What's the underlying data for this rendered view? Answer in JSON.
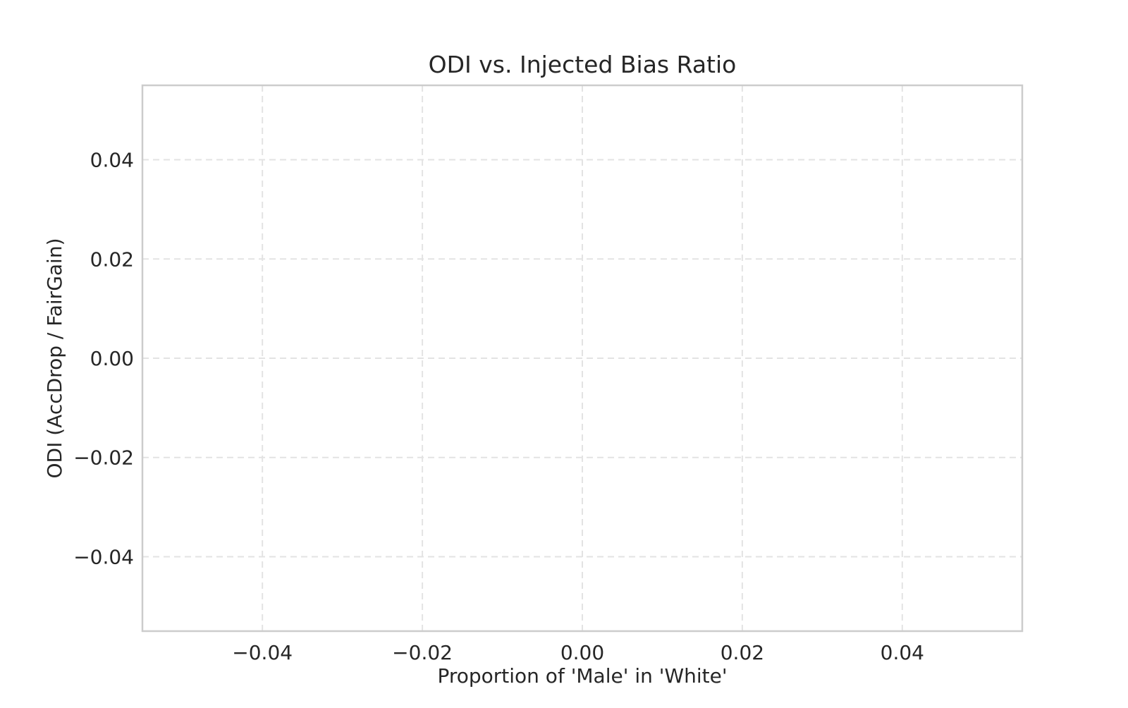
{
  "chart_data": {
    "type": "line",
    "title": "ODI vs. Injected Bias Ratio",
    "xlabel": "Proportion of 'Male' in 'White'",
    "ylabel": "ODI (AccDrop / FairGain)",
    "xlim": [
      -0.055,
      0.055
    ],
    "ylim": [
      -0.055,
      0.055
    ],
    "xticks": [
      -0.04,
      -0.02,
      0.0,
      0.02,
      0.04
    ],
    "yticks": [
      -0.04,
      -0.02,
      0.0,
      0.02,
      0.04
    ],
    "xtick_labels": [
      "−0.04",
      "−0.02",
      "0.00",
      "0.02",
      "0.04"
    ],
    "ytick_labels": [
      "−0.04",
      "−0.02",
      "0.00",
      "0.02",
      "0.04"
    ],
    "grid": true,
    "series": [],
    "colors": {
      "grid": "#e3e3e3",
      "frame": "#cccccc",
      "text": "#262626",
      "background": "#ffffff"
    }
  }
}
